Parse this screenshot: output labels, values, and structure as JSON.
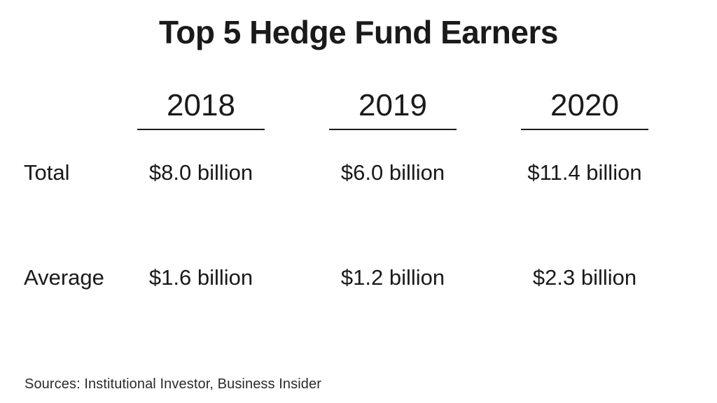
{
  "title": "Top 5 Hedge Fund Earners",
  "colors": {
    "background": "#ffffff",
    "text": "#1a1a1a",
    "rule": "#1a1a1a"
  },
  "chart_data": {
    "type": "table",
    "title": "Top 5 Hedge Fund Earners",
    "columns": [
      "2018",
      "2019",
      "2020"
    ],
    "rows": [
      {
        "label": "Total",
        "values": [
          "$8.0 billion",
          "$6.0 billion",
          "$11.4 billion"
        ],
        "values_billions": [
          8.0,
          6.0,
          11.4
        ]
      },
      {
        "label": "Average",
        "values": [
          "$1.6 billion",
          "$1.2 billion",
          "$2.3 billion"
        ],
        "values_billions": [
          1.6,
          1.2,
          2.3
        ]
      }
    ],
    "unit": "USD billions",
    "source": "Sources: Institutional Investor, Business Insider"
  }
}
